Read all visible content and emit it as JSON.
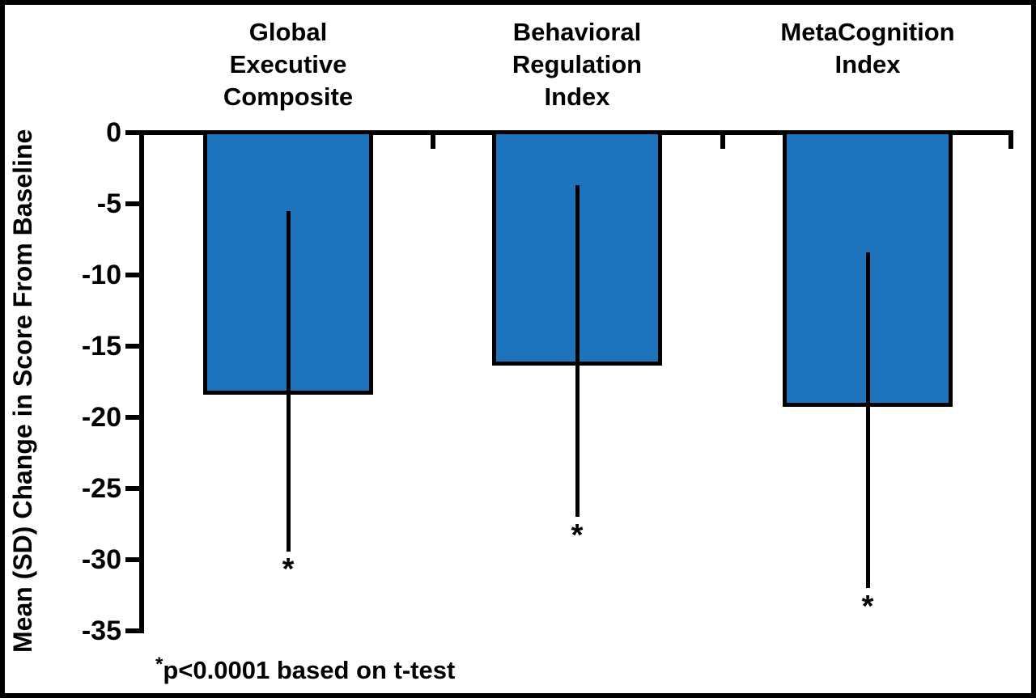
{
  "figure": {
    "footnote_star": "*",
    "footnote_text": "p<0.0001 based on t-test"
  },
  "chart_data": {
    "type": "bar",
    "title": "",
    "xlabel": "",
    "ylabel": "Mean (SD) Change in Score From Baseline",
    "ylim": [
      -35,
      0
    ],
    "yticks": [
      0,
      -5,
      -10,
      -15,
      -20,
      -25,
      -30,
      -35
    ],
    "ytick_labels": [
      "0",
      "-5",
      "-10",
      "-15",
      "-20",
      "-25",
      "-30",
      "-35"
    ],
    "categories": [
      "Global Executive Composite",
      "Behavioral Regulation Index",
      "MetaCognition Index"
    ],
    "category_lines": [
      [
        "Global",
        "Executive",
        "Composite"
      ],
      [
        "Behavioral",
        "Regulation",
        "Index"
      ],
      [
        "MetaCognition",
        "Index"
      ]
    ],
    "series": [
      {
        "name": "Mean change in score from baseline",
        "values": [
          -18.1,
          -16.1,
          -19.0
        ],
        "error_bar_tops": [
          -5.5,
          -3.7,
          -8.4
        ],
        "error_bar_bottoms": [
          -29.4,
          -27.0,
          -32.0
        ]
      }
    ],
    "significance_marker": "*",
    "annotation": "*p<0.0001 based on t-test",
    "bar_color": "#1e74bc",
    "bar_border_color": "#000000",
    "axis_color": "#000000",
    "grid": false,
    "legend": "none"
  }
}
